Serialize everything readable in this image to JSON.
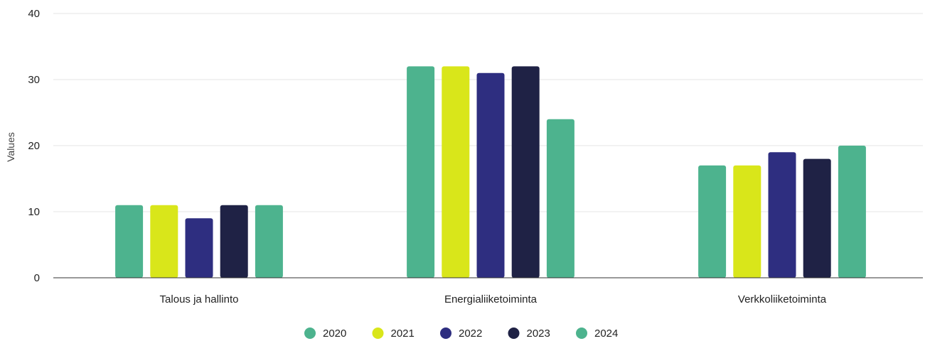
{
  "chart_data": {
    "type": "bar",
    "title": "",
    "xlabel": "",
    "ylabel": "Values",
    "ylim": [
      0,
      40
    ],
    "yticks": [
      0,
      10,
      20,
      30,
      40
    ],
    "grid": true,
    "legend_position": "bottom",
    "categories": [
      "Talous ja hallinto",
      "Energialiiketoiminta",
      "Verkkoliiketoiminta"
    ],
    "series": [
      {
        "name": "2020",
        "color": "#4db38e",
        "values": [
          11,
          32,
          17
        ]
      },
      {
        "name": "2021",
        "color": "#d9e61a",
        "values": [
          11,
          32,
          17
        ]
      },
      {
        "name": "2022",
        "color": "#2e2e80",
        "values": [
          9,
          31,
          19
        ]
      },
      {
        "name": "2023",
        "color": "#1f2245",
        "values": [
          11,
          32,
          18
        ]
      },
      {
        "name": "2024",
        "color": "#4db38e",
        "values": [
          11,
          24,
          20
        ]
      }
    ]
  }
}
